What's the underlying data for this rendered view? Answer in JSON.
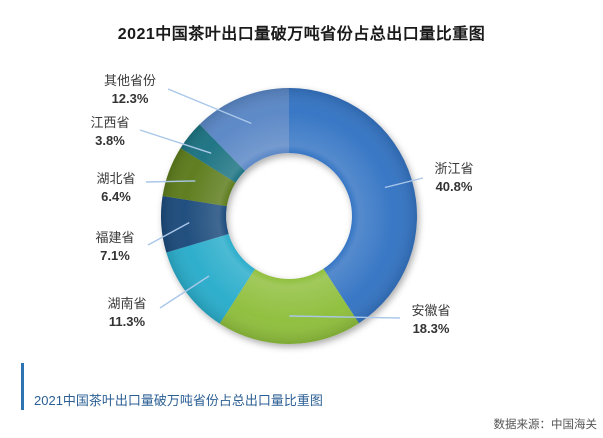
{
  "title": "2021中国茶叶出口量破万吨省份占总出口量比重图",
  "chart_data": {
    "type": "pie",
    "subtype": "donut",
    "title": "2021中国茶叶出口量破万吨省份占总出口量比重图",
    "unit": "%",
    "start_angle_deg": 0,
    "direction": "clockwise",
    "inner_radius_ratio": 0.49,
    "legend": "callout-labels",
    "categories": [
      "浙江省",
      "安徽省",
      "湖南省",
      "福建省",
      "湖北省",
      "江西省",
      "其他省份"
    ],
    "values": [
      40.8,
      18.3,
      11.3,
      7.1,
      6.4,
      3.8,
      12.3
    ],
    "pct_labels": [
      "40.8%",
      "18.3%",
      "11.3%",
      "7.1%",
      "6.4%",
      "3.8%",
      "12.3%"
    ],
    "colors": [
      "#3574C4",
      "#8FBF3D",
      "#2BADCB",
      "#1F4B7C",
      "#5D7C1E",
      "#1F7382",
      "#5A87C6"
    ],
    "leader_line_color": "#A9C7E9"
  },
  "caption": {
    "text": "2021中国茶叶出口量破万吨省份占总出口量比重图",
    "bar_color": "#2E74B5",
    "text_color": "#2B5F94"
  },
  "source": {
    "text": "数据来源：中国海关"
  }
}
